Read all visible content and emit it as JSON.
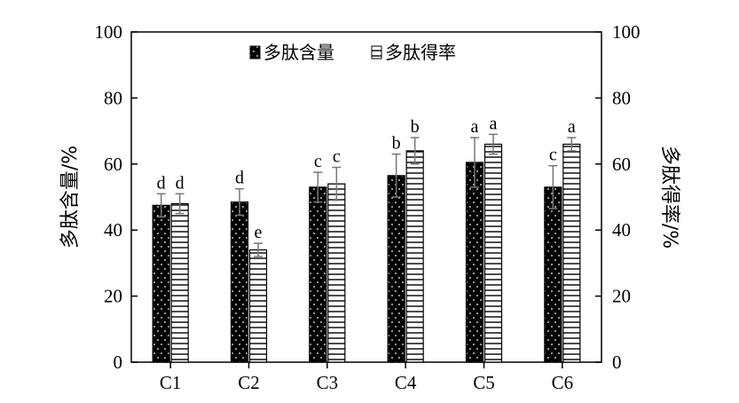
{
  "chart_data": {
    "type": "bar",
    "categories": [
      "C1",
      "C2",
      "C3",
      "C4",
      "C5",
      "C6"
    ],
    "series": [
      {
        "name": "多肽含量",
        "values": [
          47.5,
          48.5,
          53,
          56.5,
          60.5,
          53
        ],
        "errors": [
          3.5,
          4,
          4.5,
          6.5,
          7.5,
          6.5
        ],
        "letters": [
          "d",
          "d",
          "c",
          "b",
          "a",
          "c"
        ],
        "fill": "#000000",
        "pattern": "white-dots"
      },
      {
        "name": "多肽得率",
        "values": [
          48,
          34,
          54,
          64,
          66,
          66
        ],
        "errors": [
          3,
          2,
          5,
          4,
          3,
          2
        ],
        "letters": [
          "d",
          "e",
          "c",
          "b",
          "a",
          "a"
        ],
        "fill": "#ffffff",
        "pattern": "horizontal-lines"
      }
    ],
    "ylabel": "多肽含量/%",
    "ylabel_right": "多肽得率/%",
    "ylim": [
      0,
      100
    ],
    "yticks": [
      "0",
      "20",
      "40",
      "60",
      "80",
      "100"
    ],
    "legend_position": "top-center",
    "grid": false
  }
}
